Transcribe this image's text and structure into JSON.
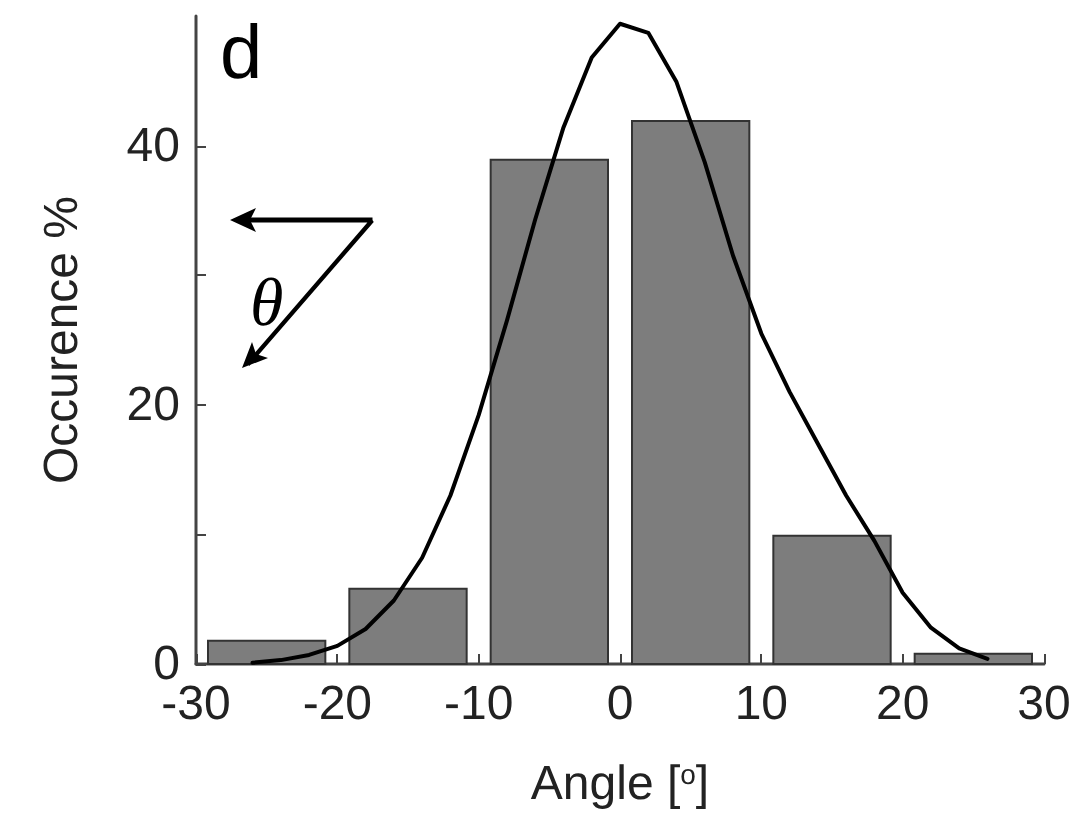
{
  "chart_data": {
    "type": "histogram",
    "xlabel": "Angle [$^{o}$]",
    "ylabel": "Occurence %",
    "bins": [
      -30,
      -20,
      -10,
      0,
      10,
      20,
      30
    ],
    "values": [
      1.8,
      5.8,
      38.9,
      41.9,
      9.9,
      0.8
    ],
    "color": "#7d7d7d",
    "series": [
      {
        "type": "line",
        "color": "#000000",
        "x": [
          -26,
          -24,
          -22,
          -20,
          -18,
          -16,
          -14,
          -12,
          -10,
          -8,
          -6,
          -4,
          -2,
          0,
          2,
          4,
          6,
          8,
          10,
          12,
          14,
          16,
          18,
          20,
          22,
          24,
          26
        ],
        "values": [
          0.1,
          0.3,
          0.7,
          1.4,
          2.7,
          4.9,
          8.2,
          13.0,
          19.2,
          26.5,
          34.3,
          41.4,
          46.8,
          49.4,
          48.7,
          44.9,
          38.7,
          31.5,
          25.5,
          21.0,
          17.0,
          13.0,
          9.5,
          5.5,
          2.8,
          1.2,
          0.4
        ]
      }
    ],
    "annotations": [
      "d",
      "θ"
    ],
    "xlim": [
      -30,
      30
    ],
    "xticks": [
      -30,
      -20,
      -10,
      0,
      10,
      20,
      30
    ],
    "ylim": [
      0,
      50
    ],
    "yticks": [
      0,
      {
        "value": 10,
        "label": null
      },
      20,
      {
        "value": 30,
        "label": null
      },
      40
    ],
    "grid": false,
    "marker": "none",
    "line_style": "solid"
  }
}
